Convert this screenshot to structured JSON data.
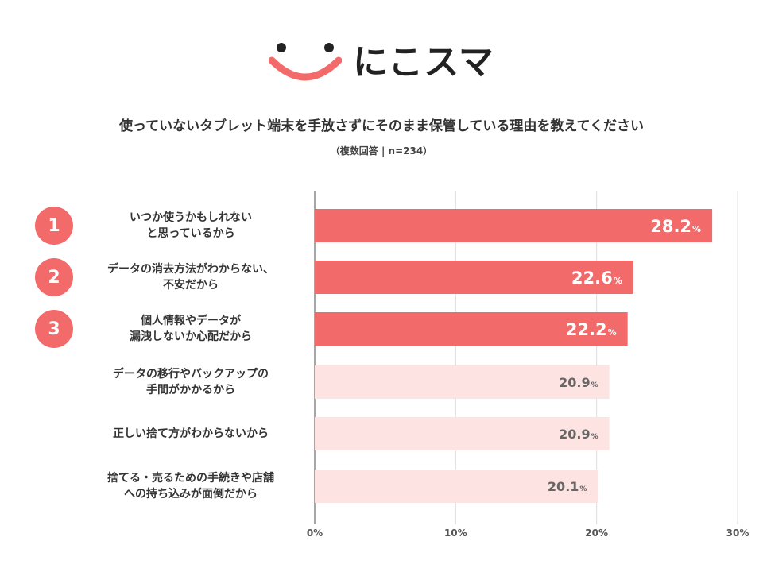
{
  "logo": {
    "text": "にこスマ"
  },
  "chart_data": {
    "type": "bar",
    "orientation": "horizontal",
    "title": "使っていないタブレット端末を手放さずにそのまま保管している理由を教えてください",
    "subtitle": "（複数回答 | n=234）",
    "xlim": [
      0,
      30
    ],
    "xticks": [
      0,
      10,
      20,
      30
    ],
    "tick_suffix": "%",
    "grid": true,
    "categories": [
      "いつか使うかもしれない\nと思っているから",
      "データの消去方法がわからない、\n不安だから",
      "個人情報やデータが\n漏洩しないか心配だから",
      "データの移行やバックアップの\n手間がかかるから",
      "正しい捨て方がわからないから",
      "捨てる・売るための手続きや店舗\nへの持ち込みが面倒だから"
    ],
    "values": [
      28.2,
      22.6,
      22.2,
      20.9,
      20.9,
      20.1
    ],
    "value_labels": [
      "28.2",
      "22.6",
      "22.2",
      "20.9",
      "20.9",
      "20.1"
    ],
    "value_suffix": "%",
    "ranks": [
      "1",
      "2",
      "3"
    ],
    "colors": {
      "highlight": "#f26a6a",
      "normal": "#fde4e3",
      "text_normal": "#666666",
      "rank": "#f26a6a"
    }
  }
}
